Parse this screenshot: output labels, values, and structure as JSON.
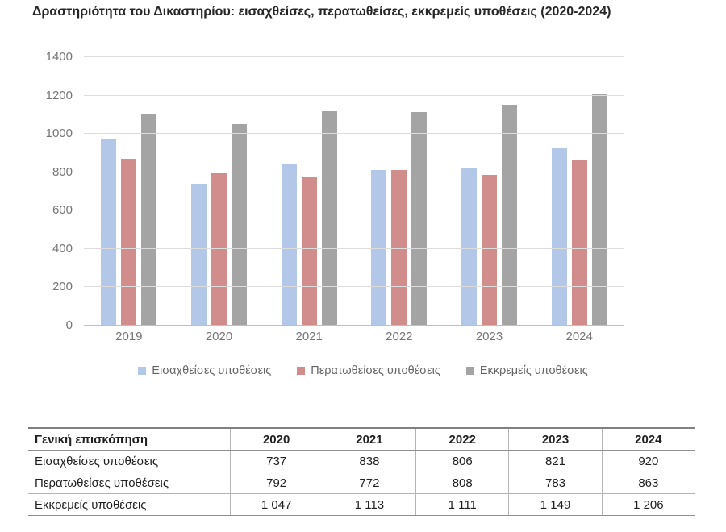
{
  "title": "Δραστηριότητα του Δικαστηρίου: εισαχθείσες, περατωθείσες, εκκρεμείς υποθέσεις (2020-2024)",
  "colors": {
    "series_introduced": "#b3c8e8",
    "series_completed": "#d18c8c",
    "series_pending": "#a4a4a4",
    "gridline": "#dcdcdc",
    "axis_text": "#757575",
    "legend_text": "#666666",
    "title_text": "#262626"
  },
  "chart_data": {
    "type": "bar",
    "title": "Δραστηριότητα του Δικαστηρίου: εισαχθείσες, περατωθείσες, εκκρεμείς υποθέσεις (2020-2024)",
    "categories": [
      "2019",
      "2020",
      "2021",
      "2022",
      "2023",
      "2024"
    ],
    "series": [
      {
        "name": "Εισαχθείσες υποθέσεις",
        "color": "#b3c8e8",
        "values": [
          966,
          737,
          838,
          806,
          821,
          920
        ]
      },
      {
        "name": "Περατωθείσες υποθέσεις",
        "color": "#d18c8c",
        "values": [
          865,
          792,
          772,
          808,
          783,
          863
        ]
      },
      {
        "name": "Εκκρεμείς υποθέσεις",
        "color": "#a4a4a4",
        "values": [
          1102,
          1047,
          1113,
          1111,
          1149,
          1206
        ]
      }
    ],
    "xlabel": "",
    "ylabel": "",
    "ylim": [
      0,
      1400
    ],
    "yticks": [
      0,
      200,
      400,
      600,
      800,
      1000,
      1200,
      1400
    ],
    "grid": true,
    "legend_position": "bottom"
  },
  "table": {
    "header": [
      "Γενική επισκόπηση",
      "2020",
      "2021",
      "2022",
      "2023",
      "2024"
    ],
    "rows": [
      {
        "label": "Εισαχθείσες υποθέσεις",
        "values": [
          "737",
          "838",
          "806",
          "821",
          "920"
        ]
      },
      {
        "label": "Περατωθείσες υποθέσεις",
        "values": [
          "792",
          "772",
          "808",
          "783",
          "863"
        ]
      },
      {
        "label": "Εκκρεμείς υποθέσεις",
        "values": [
          "1 047",
          "1 113",
          "1 111",
          "1 149",
          "1 206"
        ]
      }
    ]
  }
}
